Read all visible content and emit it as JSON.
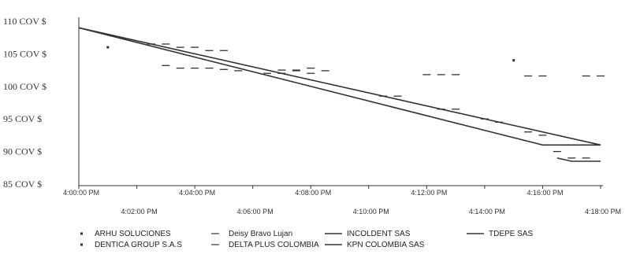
{
  "chart_data": {
    "type": "line",
    "title": "",
    "xlabel": "",
    "ylabel": "",
    "grid": false,
    "legend": "bottom",
    "y_ticks": [
      "85 COV $",
      "90 COV $",
      "95 COV $",
      "100 COV $",
      "105 COV $",
      "110 COV $"
    ],
    "ylim": [
      85,
      110
    ],
    "x_ticks_upper": [
      "4:00:00 PM",
      "4:04:00 PM",
      "4:08:00 PM",
      "4:12:00 PM",
      "4:16:00 PM"
    ],
    "x_ticks_lower": [
      "4:02:00 PM",
      "4:06:00 PM",
      "4:10:00 PM",
      "4:14:00 PM",
      "4:18:00 PM"
    ],
    "xlim_minutes": [
      0,
      18
    ],
    "series": [
      {
        "name": "ARHU SOLUCIONES",
        "style": "marker",
        "color": "#333333",
        "x": [
          1.0
        ],
        "y": [
          106.0
        ]
      },
      {
        "name": "Deisy Bravo Lujan",
        "style": "dash",
        "color": "#333333",
        "x": [
          3.0,
          3.5,
          4.0,
          4.5,
          5.0,
          5.5,
          6.5,
          7.0,
          7.5,
          8.0,
          8.5,
          12.0,
          12.5,
          13.0,
          15.5,
          16.0,
          17.5,
          18.0
        ],
        "y": [
          103.2,
          102.8,
          102.8,
          102.8,
          102.6,
          102.4,
          102.0,
          102.0,
          102.4,
          102.8,
          102.4,
          101.8,
          101.8,
          101.8,
          101.6,
          101.6,
          101.6,
          101.6
        ]
      },
      {
        "name": "INCOLDENT SAS",
        "style": "line",
        "color": "#333333",
        "x": [
          0,
          18
        ],
        "y": [
          109.0,
          91.0
        ]
      },
      {
        "name": "TDEPE SAS",
        "style": "line",
        "color": "#333333",
        "x": [
          0,
          16.0,
          18.0
        ],
        "y": [
          109.0,
          91.0,
          91.0
        ]
      },
      {
        "name": "DENTICA GROUP S.A.S",
        "style": "marker",
        "color": "#333333",
        "x": [
          15.0
        ],
        "y": [
          104.0
        ]
      },
      {
        "name": "DELTA PLUS COLOMBIA",
        "style": "dash",
        "color": "#333333",
        "x": [
          2.5,
          3.0,
          3.5,
          4.0,
          4.5,
          5.0,
          7.0,
          7.5,
          8.0,
          10.5,
          11.0,
          12.5,
          13.0,
          14.0,
          14.5,
          15.5,
          16.0,
          16.5,
          17.0,
          17.5
        ],
        "y": [
          106.5,
          106.5,
          106.0,
          106.0,
          105.5,
          105.5,
          102.5,
          102.5,
          102.0,
          98.5,
          98.5,
          96.5,
          96.5,
          95.0,
          94.5,
          93.0,
          92.5,
          90.0,
          89.0,
          89.0
        ]
      },
      {
        "name": "KPN COLOMBIA SAS",
        "style": "line",
        "color": "#333333",
        "x": [
          16.5,
          17.0,
          17.5,
          18.0
        ],
        "y": [
          89.0,
          88.5,
          88.5,
          88.5
        ]
      }
    ]
  },
  "legend_rows": [
    [
      "ARHU SOLUCIONES",
      "Deisy Bravo Lujan",
      "INCOLDENT SAS",
      "TDEPE SAS"
    ],
    [
      "DENTICA GROUP S.A.S",
      "DELTA PLUS COLOMBIA",
      "KPN COLOMBIA SAS"
    ]
  ]
}
